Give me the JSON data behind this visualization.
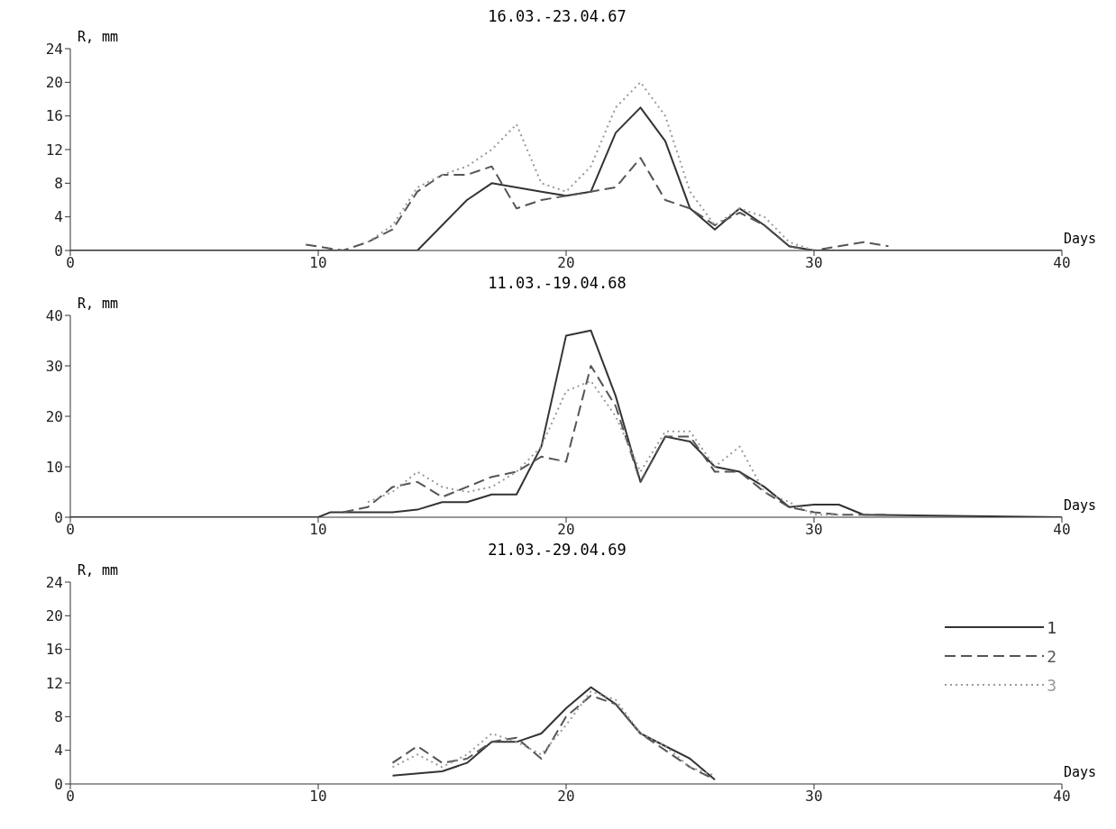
{
  "chart_data": [
    {
      "type": "line",
      "title": "16.03.-23.04.67",
      "xlabel": "Days",
      "ylabel": "R, mm",
      "xlim": [
        0,
        40
      ],
      "xticks": [
        0,
        10,
        20,
        30,
        40
      ],
      "ylim": [
        0,
        24
      ],
      "yticks": [
        0,
        4,
        8,
        12,
        16,
        20,
        24
      ],
      "grid": false,
      "marker": "none",
      "series": [
        {
          "color": "#333333",
          "line_style": "solid",
          "x": [
            0,
            14,
            15,
            16,
            17,
            18,
            19,
            20,
            21,
            22,
            23,
            24,
            25,
            26,
            27,
            28,
            29,
            30,
            40
          ],
          "values": [
            0,
            0,
            3,
            6,
            8,
            7.5,
            7,
            6.5,
            7,
            14,
            17,
            13,
            5,
            2.5,
            5,
            3,
            0.5,
            0,
            0
          ]
        },
        {
          "color": "#555555",
          "line_style": "dashed",
          "x": [
            9.5,
            11,
            12,
            13,
            14,
            15,
            16,
            17,
            18,
            19,
            20,
            21,
            22,
            23,
            24,
            25,
            26,
            27,
            28,
            29,
            30,
            31,
            32,
            33
          ],
          "values": [
            0.7,
            0,
            1,
            2.5,
            7,
            9,
            9,
            10,
            5,
            6,
            6.5,
            7,
            7.5,
            11,
            6,
            5,
            3,
            4.5,
            3,
            0.5,
            0,
            0.5,
            1,
            0.5
          ]
        },
        {
          "color": "#999999",
          "line_style": "dotted",
          "x": [
            12,
            13,
            14,
            15,
            16,
            17,
            18,
            19,
            20,
            21,
            22,
            23,
            24,
            25,
            26,
            27,
            28,
            29,
            30
          ],
          "values": [
            1,
            3,
            7.5,
            9,
            10,
            12,
            15,
            8,
            7,
            10,
            17,
            20,
            16,
            7,
            3,
            5,
            4,
            1,
            0
          ]
        }
      ]
    },
    {
      "type": "line",
      "title": "11.03.-19.04.68",
      "xlabel": "Days",
      "ylabel": "R, mm",
      "xlim": [
        0,
        40
      ],
      "xticks": [
        0,
        10,
        20,
        30,
        40
      ],
      "ylim": [
        0,
        40
      ],
      "yticks": [
        0,
        10,
        20,
        30,
        40
      ],
      "grid": false,
      "marker": "none",
      "series": [
        {
          "color": "#333333",
          "line_style": "solid",
          "x": [
            0,
            10,
            10.5,
            12,
            13,
            14,
            15,
            16,
            17,
            18,
            19,
            20,
            21,
            22,
            23,
            24,
            25,
            26,
            27,
            28,
            29,
            30,
            31,
            32,
            40
          ],
          "values": [
            0,
            0,
            1,
            1,
            1,
            1.5,
            3,
            3,
            4.5,
            4.5,
            14,
            36,
            37,
            24,
            7,
            16,
            15,
            10,
            9,
            6,
            2,
            2.5,
            2.5,
            0.5,
            0
          ]
        },
        {
          "color": "#555555",
          "line_style": "dashed",
          "x": [
            11,
            12,
            13,
            14,
            15,
            16,
            17,
            18,
            19,
            20,
            21,
            22,
            23,
            24,
            25,
            26,
            27,
            28,
            29,
            30,
            31,
            32,
            33
          ],
          "values": [
            1,
            2,
            6,
            7,
            4,
            6,
            8,
            9,
            12,
            11,
            30,
            22,
            7,
            16,
            16,
            9,
            9,
            5,
            2,
            1,
            0.5,
            0.5,
            0.5
          ]
        },
        {
          "color": "#999999",
          "line_style": "dotted",
          "x": [
            12,
            13,
            14,
            15,
            16,
            17,
            18,
            19,
            20,
            21,
            22,
            23,
            24,
            25,
            26,
            27,
            28,
            29,
            30,
            31
          ],
          "values": [
            3,
            5,
            9,
            6,
            5,
            6,
            9,
            14,
            25,
            27,
            20,
            9,
            17,
            17,
            10,
            14,
            5,
            3,
            0.5,
            0.5
          ]
        }
      ]
    },
    {
      "type": "line",
      "title": "21.03.-29.04.69",
      "xlabel": "Days",
      "ylabel": "R, mm",
      "xlim": [
        0,
        40
      ],
      "xticks": [
        0,
        10,
        20,
        30,
        40
      ],
      "ylim": [
        0,
        24
      ],
      "yticks": [
        0,
        4,
        8,
        12,
        16,
        20,
        24
      ],
      "grid": false,
      "marker": "none",
      "legend": "right",
      "series": [
        {
          "name": "1",
          "color": "#333333",
          "line_style": "solid",
          "x": [
            13,
            15,
            16,
            17,
            18,
            19,
            20,
            21,
            22,
            23,
            24,
            25,
            26
          ],
          "values": [
            1,
            1.5,
            2.5,
            5,
            5,
            6,
            9,
            11.5,
            9.5,
            6,
            4.5,
            3,
            0.5
          ]
        },
        {
          "name": "2",
          "color": "#555555",
          "line_style": "dashed",
          "x": [
            13,
            14,
            15,
            16,
            17,
            18,
            19,
            20,
            21,
            22,
            23,
            24,
            25,
            26
          ],
          "values": [
            2.5,
            4.5,
            2.5,
            3,
            5,
            5.5,
            3,
            8,
            10.5,
            9.5,
            6,
            4,
            2,
            0.5
          ]
        },
        {
          "name": "3",
          "color": "#999999",
          "line_style": "dotted",
          "x": [
            13,
            14,
            15,
            16,
            17,
            18,
            19,
            20,
            21,
            22,
            23,
            24,
            25,
            26
          ],
          "values": [
            2,
            3.5,
            2,
            3.5,
            6,
            5,
            3.5,
            7,
            11,
            10,
            6,
            4.5,
            2,
            1
          ]
        }
      ]
    }
  ]
}
